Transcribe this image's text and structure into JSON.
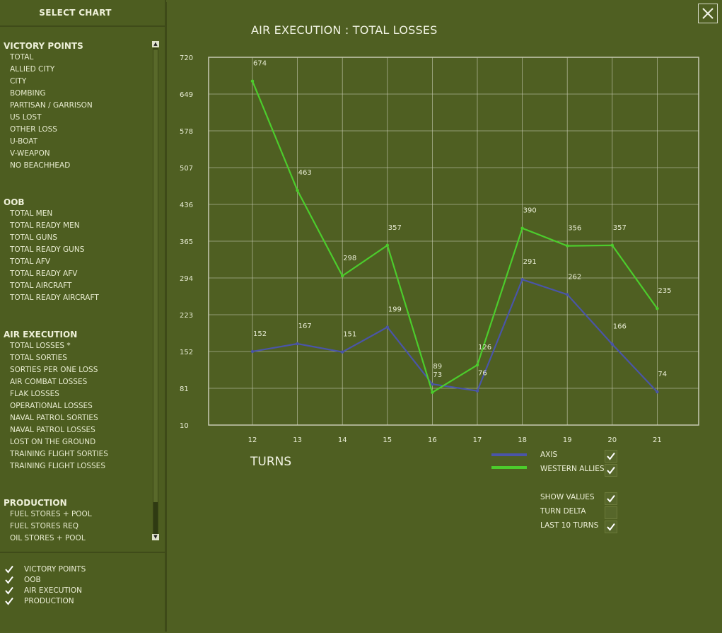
{
  "sidebar": {
    "header": "SELECT CHART",
    "sections": [
      {
        "title": "VICTORY POINTS",
        "items": [
          "TOTAL",
          "ALLIED CITY",
          "CITY",
          "BOMBING",
          "PARTISAN / GARRISON",
          "US LOST",
          "OTHER LOSS",
          "U-BOAT",
          "V-WEAPON",
          "NO BEACHHEAD"
        ]
      },
      {
        "title": "OOB",
        "items": [
          "TOTAL MEN",
          "TOTAL READY MEN",
          "TOTAL GUNS",
          "TOTAL READY GUNS",
          "TOTAL AFV",
          "TOTAL READY AFV",
          "TOTAL AIRCRAFT",
          "TOTAL READY AIRCRAFT"
        ]
      },
      {
        "title": "AIR EXECUTION",
        "items": [
          "TOTAL LOSSES *",
          "TOTAL SORTIES",
          "SORTIES PER ONE LOSS",
          "AIR COMBAT LOSSES",
          "FLAK LOSSES",
          "OPERATIONAL LOSSES",
          "NAVAL PATROL SORTIES",
          "NAVAL PATROL LOSSES",
          "LOST ON THE GROUND",
          "TRAINING FLIGHT SORTIES",
          "TRAINING FLIGHT LOSSES"
        ]
      },
      {
        "title": "PRODUCTION",
        "items": [
          "FUEL STORES + POOL",
          "FUEL STORES REQ",
          "OIL STORES + POOL"
        ]
      }
    ],
    "filters": [
      {
        "label": "VICTORY POINTS",
        "checked": true
      },
      {
        "label": "OOB",
        "checked": true
      },
      {
        "label": "AIR EXECUTION",
        "checked": true
      },
      {
        "label": "PRODUCTION",
        "checked": true
      }
    ]
  },
  "options": {
    "show_values": {
      "label": "SHOW VALUES",
      "checked": true
    },
    "turn_delta": {
      "label": "TURN DELTA",
      "checked": false
    },
    "last_10_turns": {
      "label": "LAST 10 TURNS",
      "checked": true
    }
  },
  "colors": {
    "axis": "#4a55a8",
    "western_allies": "#4ccc2c",
    "grid": "#c8ccb4",
    "background": "#4f5f22"
  },
  "chart_data": {
    "type": "line",
    "title": "AIR EXECUTION : TOTAL LOSSES",
    "xlabel": "TURNS",
    "ylabel": "",
    "x": [
      12,
      13,
      14,
      15,
      16,
      17,
      18,
      19,
      20,
      21
    ],
    "y_ticks": [
      10,
      81,
      152,
      223,
      294,
      365,
      436,
      507,
      578,
      649,
      720
    ],
    "ylim": [
      10,
      720
    ],
    "grid": true,
    "legend": "bottom-right",
    "series": [
      {
        "name": "AXIS",
        "values": [
          152,
          167,
          151,
          199,
          89,
          76,
          291,
          262,
          166,
          74
        ],
        "color_key": "axis",
        "checked": true
      },
      {
        "name": "WESTERN ALLIES",
        "values": [
          674,
          463,
          298,
          357,
          73,
          126,
          390,
          356,
          357,
          235
        ],
        "color_key": "western_allies",
        "checked": true
      }
    ]
  }
}
